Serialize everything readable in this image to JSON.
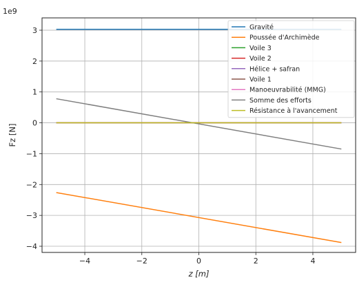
{
  "chart_data": {
    "type": "line",
    "multiplier": "1e9",
    "xlabel": "z [m]",
    "ylabel": "Fz [N]",
    "xlim": [
      -5.5,
      5.5
    ],
    "ylim": [
      -4.2,
      3.4
    ],
    "xticks": [
      -4,
      -2,
      0,
      2,
      4
    ],
    "xtick_labels": [
      "−4",
      "−2",
      "0",
      "2",
      "4"
    ],
    "yticks": [
      -4,
      -3,
      -2,
      -1,
      0,
      1,
      2,
      3
    ],
    "ytick_labels": [
      "−4",
      "−3",
      "−2",
      "−1",
      "0",
      "1",
      "2",
      "3"
    ],
    "grid": true,
    "legend_position": "top-right",
    "x": [
      -5,
      5
    ],
    "series": [
      {
        "name": "Gravité",
        "color": "#1f77b4",
        "values": [
          3.03,
          3.03
        ]
      },
      {
        "name": "Poussée d'Archimède",
        "color": "#ff7f0e",
        "values": [
          -2.26,
          -3.88
        ]
      },
      {
        "name": "Voile 3",
        "color": "#2ca02c",
        "values": [
          0.0,
          0.0
        ]
      },
      {
        "name": "Voile 2",
        "color": "#d62728",
        "values": [
          0.0,
          0.0
        ]
      },
      {
        "name": "Hélice + safran",
        "color": "#9467bd",
        "values": [
          0.0,
          0.0
        ]
      },
      {
        "name": "Voile 1",
        "color": "#8c564b",
        "values": [
          0.0,
          0.0
        ]
      },
      {
        "name": "Manoeuvrabilité (MMG)",
        "color": "#e377c2",
        "values": [
          0.0,
          0.0
        ]
      },
      {
        "name": "Somme des efforts",
        "color": "#7f7f7f",
        "values": [
          0.78,
          -0.85
        ]
      },
      {
        "name": "Résistance à l'avancement",
        "color": "#bcbd22",
        "values": [
          0.0,
          0.0
        ]
      }
    ]
  }
}
